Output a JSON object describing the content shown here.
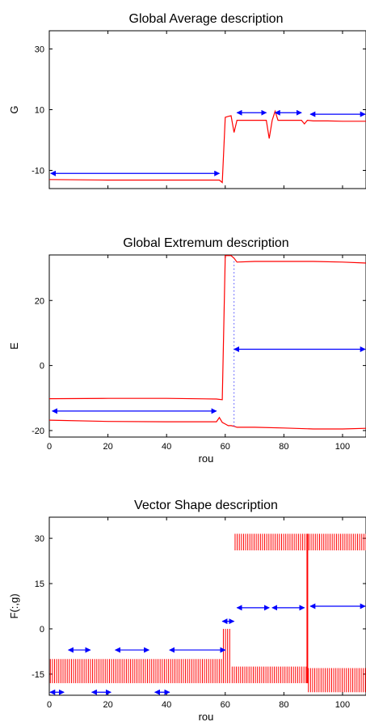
{
  "chart_data": [
    {
      "type": "line",
      "title": "Global Average description",
      "xlabel": "",
      "ylabel": "G",
      "xlim": [
        0,
        108
      ],
      "ylim": [
        -16,
        36
      ],
      "xticks": [
        0,
        20,
        40,
        60,
        80,
        100
      ],
      "yticks": [
        30,
        10,
        -10
      ],
      "show_xtick_labels": false,
      "series": [
        {
          "color": "#ff0000",
          "x": [
            0,
            20,
            40,
            58,
            59,
            60,
            61,
            62,
            63,
            64,
            66,
            68,
            70,
            72,
            74,
            75,
            76,
            77,
            78,
            80,
            82,
            84,
            86,
            87,
            88,
            90,
            95,
            100,
            105,
            108
          ],
          "y": [
            -13,
            -13.2,
            -13.2,
            -13.2,
            -14,
            7.5,
            7.8,
            8,
            2.5,
            6.5,
            6.5,
            6.5,
            6.5,
            6.5,
            6.5,
            0.5,
            6.5,
            9.5,
            6.5,
            6.5,
            6.5,
            6.5,
            6.5,
            5.3,
            6.5,
            6.3,
            6.3,
            6.2,
            6.2,
            6.2
          ]
        }
      ],
      "segments": [
        {
          "x1": 0.5,
          "x2": 58,
          "y": -11
        },
        {
          "x1": 64,
          "x2": 74,
          "y": 9
        },
        {
          "x1": 77,
          "x2": 86,
          "y": 9
        },
        {
          "x1": 89,
          "x2": 108,
          "y": 8.5
        }
      ]
    },
    {
      "type": "line",
      "title": "Global Extremum description",
      "xlabel": "rou",
      "ylabel": "E",
      "xlim": [
        0,
        108
      ],
      "ylim": [
        -22,
        34
      ],
      "xticks": [
        0,
        20,
        40,
        60,
        80,
        100
      ],
      "yticks": [
        20,
        0,
        -20
      ],
      "show_xtick_labels": true,
      "series": [
        {
          "color": "#ff0000",
          "x": [
            0,
            20,
            40,
            57,
            59,
            60,
            61,
            62,
            63,
            64,
            70,
            80,
            90,
            100,
            108
          ],
          "y": [
            -10.2,
            -10.1,
            -10.1,
            -10.3,
            -10.5,
            33.8,
            33.8,
            33.8,
            33,
            31.8,
            32,
            32,
            32,
            31.8,
            31.5
          ]
        },
        {
          "color": "#ff0000",
          "x": [
            0,
            20,
            40,
            55,
            57,
            58,
            59,
            60,
            61,
            62,
            63,
            64,
            70,
            80,
            90,
            100,
            108
          ],
          "y": [
            -16.8,
            -17.2,
            -17.3,
            -17.3,
            -17.3,
            -16,
            -17.5,
            -18,
            -18.5,
            -18.5,
            -18.7,
            -19,
            -19,
            -19.2,
            -19.5,
            -19.5,
            -19.3
          ]
        }
      ],
      "vline": {
        "x": 63,
        "y1": -18.7,
        "y2": 32,
        "color": "#4444ff"
      },
      "segments": [
        {
          "x1": 1,
          "x2": 57,
          "y": -14
        },
        {
          "x1": 63,
          "x2": 108,
          "y": 5
        }
      ]
    },
    {
      "type": "bar",
      "title": "Vector Shape description",
      "xlabel": "rou",
      "ylabel": "F(:,g)",
      "xlim": [
        0,
        108
      ],
      "ylim": [
        -22,
        37
      ],
      "xticks": [
        0,
        20,
        40,
        60,
        80,
        100
      ],
      "yticks": [
        30,
        15,
        0,
        -15
      ],
      "show_xtick_labels": true,
      "blocks": [
        {
          "x1": 0,
          "x2": 59,
          "top": -10,
          "bottom": -18
        },
        {
          "x1": 59,
          "x2": 62,
          "top": 0,
          "bottom": -18
        },
        {
          "x1": 62,
          "x2": 88,
          "top": -12.5,
          "bottom": -18
        },
        {
          "x1": 88,
          "x2": 108,
          "top": -13,
          "bottom": -21
        }
      ],
      "upper_block": {
        "x1": 63,
        "x2": 108,
        "top": 31.5,
        "bottom": 26
      },
      "tall_bar": {
        "x": 88,
        "top": 31.5,
        "bottom": -18
      },
      "segments": [
        {
          "x1": 0,
          "x2": 5,
          "y": -21
        },
        {
          "x1": 6.5,
          "x2": 14,
          "y": -7
        },
        {
          "x1": 14.5,
          "x2": 21,
          "y": -21
        },
        {
          "x1": 22.5,
          "x2": 34,
          "y": -7
        },
        {
          "x1": 36,
          "x2": 41,
          "y": -21
        },
        {
          "x1": 41,
          "x2": 60,
          "y": -7
        },
        {
          "x1": 59,
          "x2": 63,
          "y": 2.5
        },
        {
          "x1": 64,
          "x2": 75,
          "y": 7
        },
        {
          "x1": 76,
          "x2": 87,
          "y": 7
        },
        {
          "x1": 89,
          "x2": 108,
          "y": 7.5
        }
      ]
    }
  ]
}
